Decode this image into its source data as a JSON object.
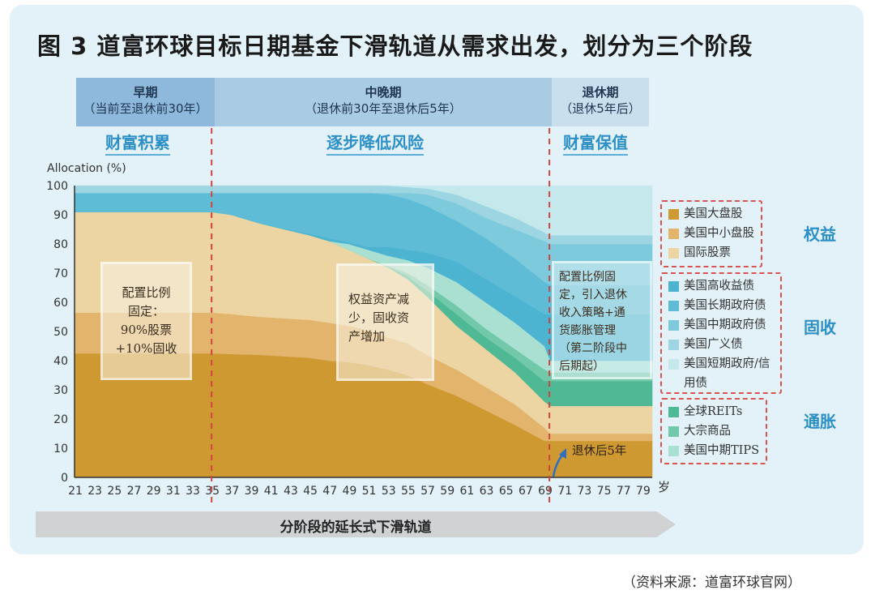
{
  "title": "图 3  道富环球目标日期基金下滑轨道从需求出发，划分为三个阶段",
  "phases": [
    {
      "name": "早期",
      "range": "（当前至退休前30年）",
      "goal": "财富积累"
    },
    {
      "name": "中晚期",
      "range": "（退休前30年至退休后5年）",
      "goal": "逐步降低风险"
    },
    {
      "name": "退休期",
      "range": "（退休5年后）",
      "goal": "财富保值"
    }
  ],
  "notes": [
    "配置比例固定：90%股票+10%固收",
    "权益资产减少，固收资产增加",
    "配置比例固定，引入退休收入策略+通货膨胀管理（第二阶段中后期起）"
  ],
  "note_lines": {
    "n1": [
      "配置比例",
      "固定：",
      "90%股票",
      "+10%固收"
    ],
    "n2": [
      "权益资产减",
      "少，固收资",
      "产增加"
    ],
    "n3": [
      "配置比例固",
      "定，引入退休",
      "收入策略+通",
      "货膨胀管理",
      "（第二阶段中",
      "后期起）"
    ]
  },
  "retire_annotation": "退休后5年",
  "glide_path_label": "分阶段的延长式下滑轨道",
  "source": "（资料来源：道富环球官网）",
  "legend_groups": [
    {
      "group": "权益",
      "items": [
        "美国大盘股",
        "美国中小盘股",
        "国际股票"
      ]
    },
    {
      "group": "固收",
      "items": [
        "美国高收益债",
        "美国长期政府债",
        "美国中期政府债",
        "美国广义债",
        "美国短期政府/信用债"
      ]
    },
    {
      "group": "通胀",
      "items": [
        "全球REITs",
        "大宗商品",
        "美国中期TIPS"
      ]
    }
  ],
  "colors": {
    "美国大盘股": "#cf9932",
    "美国中小盘股": "#e2b46c",
    "国际股票": "#ecd5a2",
    "美国高收益债": "#4cb3d0",
    "美国长期政府债": "#5fbcd6",
    "美国中期政府债": "#7dcadd",
    "美国广义债": "#9dd6e2",
    "美国短期政府/信用债": "#c5e8ec",
    "全球REITs": "#4fb895",
    "大宗商品": "#72c9aa",
    "美国中期TIPS": "#a9e0d2",
    "phase_divider": "#d0453f",
    "accent": "#2c8fc6"
  },
  "chart_data": {
    "type": "area",
    "title": "",
    "xlabel": "岁",
    "ylabel": "Allocation (%)",
    "xlim": [
      21,
      80
    ],
    "ylim": [
      0,
      100
    ],
    "x_ticks": [
      21,
      23,
      25,
      27,
      29,
      31,
      33,
      35,
      37,
      39,
      41,
      43,
      45,
      47,
      49,
      51,
      53,
      55,
      57,
      59,
      61,
      63,
      65,
      67,
      69,
      71,
      73,
      75,
      77,
      79
    ],
    "y_ticks": [
      0,
      10,
      20,
      30,
      40,
      50,
      60,
      70,
      80,
      90,
      100
    ],
    "phase_dividers": [
      35,
      69.5
    ],
    "stacking": "cumulative top boundaries, bottom to top",
    "x": [
      21,
      35,
      37,
      40,
      45,
      47,
      49,
      51,
      53,
      55,
      57,
      60,
      63,
      66,
      69,
      69.6,
      80
    ],
    "series": [
      {
        "name": "美国大盘股",
        "top": [
          42.5,
          42.5,
          42.3,
          42,
          41,
          40,
          39.5,
          38.5,
          37,
          35,
          32,
          28,
          23,
          18,
          12.5,
          12.5,
          12.5
        ]
      },
      {
        "name": "美国中小盘股",
        "top": [
          56.5,
          56.5,
          56,
          55,
          54,
          53,
          52,
          50.5,
          48,
          46,
          42,
          37,
          31,
          25,
          17,
          15,
          15
        ]
      },
      {
        "name": "国际股票",
        "top": [
          91,
          91,
          90,
          87,
          83,
          81,
          78,
          75,
          72,
          68,
          62,
          52,
          44,
          36,
          26,
          24.5,
          24.5
        ]
      },
      {
        "name": "全球REITs",
        "top": [
          91,
          91,
          90,
          87,
          83,
          81,
          78,
          75,
          72,
          69,
          64,
          56,
          48,
          41,
          33,
          33,
          33
        ]
      },
      {
        "name": "大宗商品",
        "top": [
          91,
          91,
          90,
          87,
          83,
          81,
          78,
          75,
          72.5,
          70,
          66,
          59,
          51,
          44,
          37,
          36,
          36
        ]
      },
      {
        "name": "美国中期TIPS",
        "top": [
          91,
          91,
          90,
          87,
          83,
          81,
          80,
          78,
          76,
          74.5,
          72,
          67,
          60,
          53,
          45,
          40,
          40
        ]
      },
      {
        "name": "美国高收益债",
        "top": [
          91,
          91,
          90,
          87,
          83.5,
          82,
          80.5,
          79,
          79,
          78,
          77,
          74,
          68,
          62,
          56,
          56,
          56
        ]
      },
      {
        "name": "美国长期政府债",
        "top": [
          97.5,
          97.5,
          97.5,
          97.5,
          97.5,
          97.5,
          97.5,
          97.5,
          97,
          95.5,
          93,
          88,
          82,
          75,
          67,
          66,
          66
        ]
      },
      {
        "name": "美国中期政府债",
        "top": [
          97.5,
          97.5,
          97.5,
          97.5,
          97.5,
          97.5,
          97.5,
          97.5,
          97.5,
          97.5,
          97,
          94,
          89,
          85,
          81,
          80,
          80
        ]
      },
      {
        "name": "美国广义债",
        "top": [
          100,
          100,
          100,
          100,
          100,
          100,
          100,
          100,
          100,
          99.5,
          99,
          97,
          93,
          89,
          84,
          83,
          83
        ]
      },
      {
        "name": "美国短期政府/信用债",
        "top": [
          100,
          100,
          100,
          100,
          100,
          100,
          100,
          100,
          100,
          100,
          100,
          100,
          100,
          100,
          100,
          100,
          100
        ]
      }
    ]
  }
}
